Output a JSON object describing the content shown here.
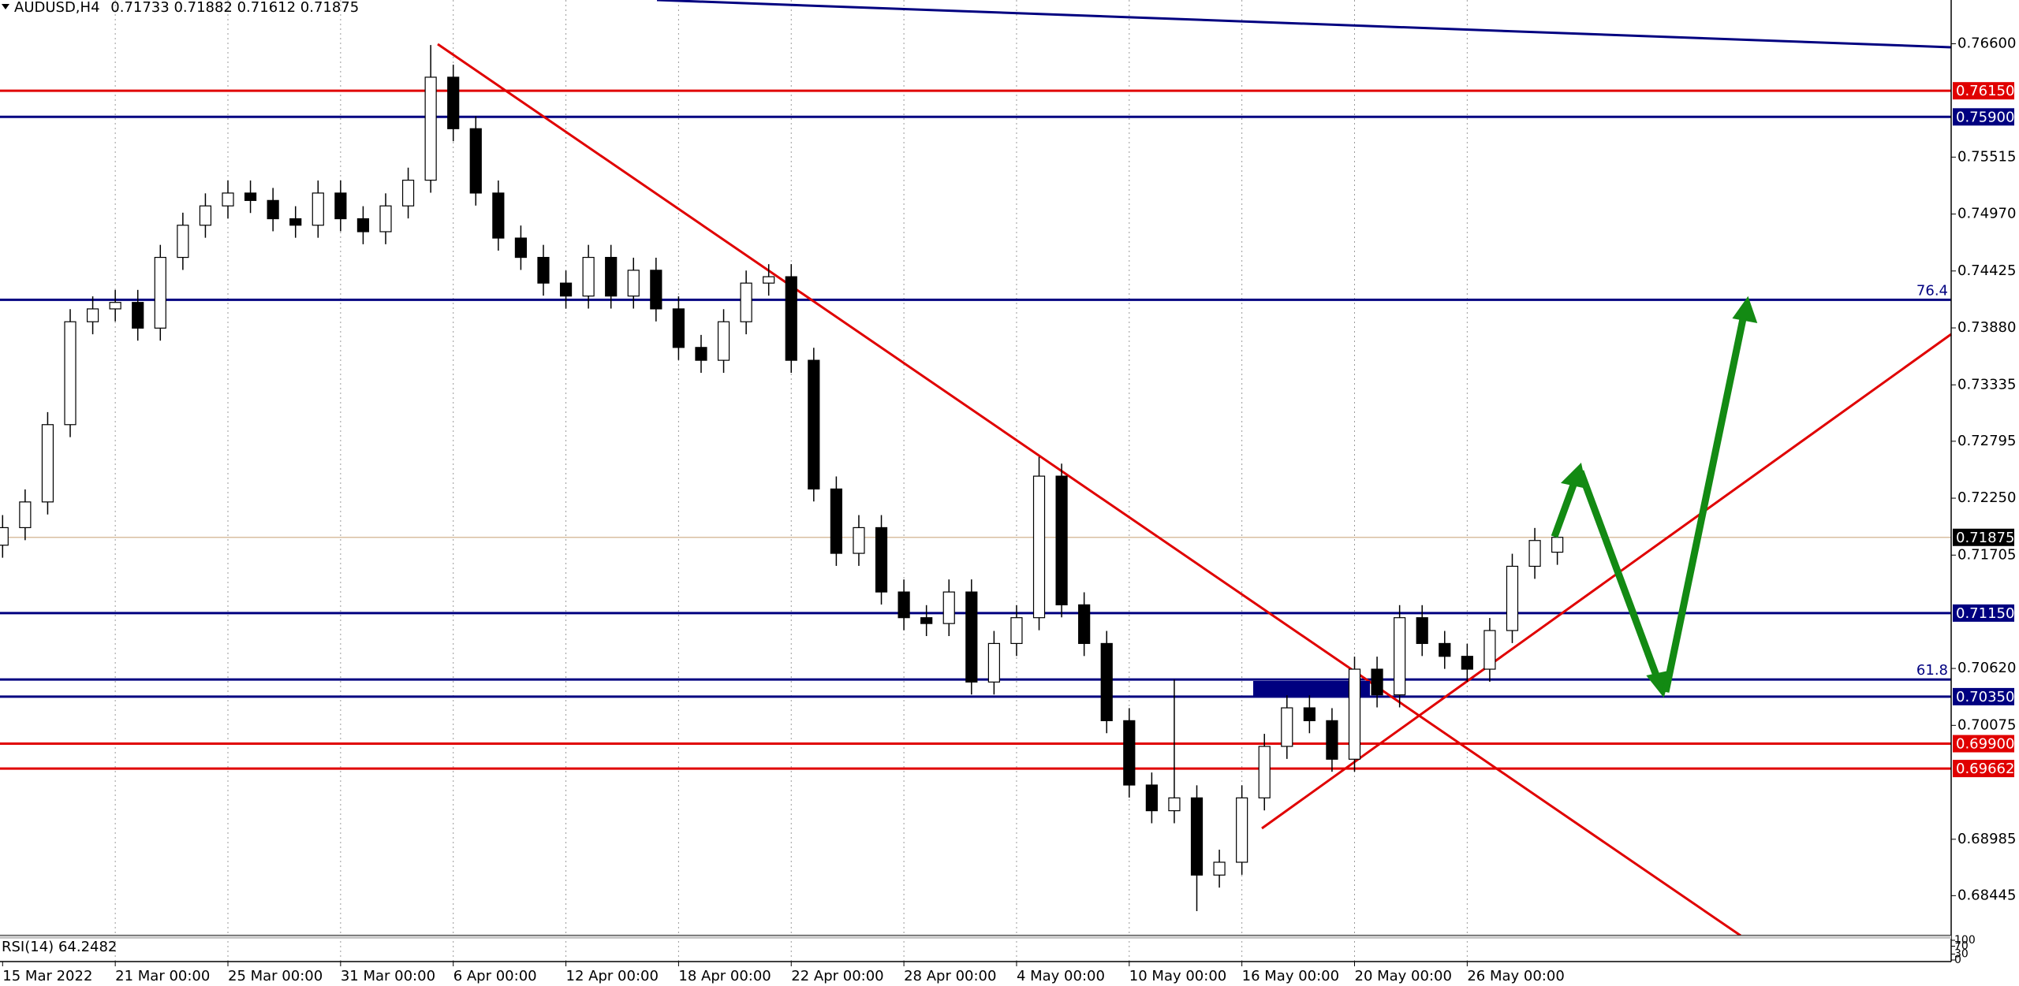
{
  "chart_data": {
    "type": "candlestick",
    "symbol": "AUDUSD,H4",
    "up_color": "#ffffff",
    "down_color": "#000000",
    "grid": true,
    "ylim": [
      0.68063,
      0.77019
    ],
    "yticks": [
      {
        "value": 0.766,
        "label": "0.76600"
      },
      0.75515,
      {
        "value": 0.7497,
        "label": "0.74970"
      },
      0.74425,
      {
        "value": 0.7388,
        "label": "0.73880"
      },
      0.73335,
      0.72795,
      {
        "value": 0.7225,
        "label": "0.72250"
      },
      0.71705,
      {
        "value": 0.7062,
        "label": "0.70620"
      },
      0.70075,
      0.68985,
      0.68445
    ],
    "categories": [
      "15 Mar 2022",
      null,
      null,
      null,
      null,
      "21 Mar 00:00",
      null,
      null,
      null,
      null,
      "25 Mar 00:00",
      null,
      null,
      null,
      null,
      "31 Mar 00:00",
      null,
      null,
      null,
      null,
      "6 Apr 00:00",
      null,
      null,
      null,
      null,
      "12 Apr 00:00",
      null,
      null,
      null,
      null,
      "18 Apr 00:00",
      null,
      null,
      null,
      null,
      "22 Apr 00:00",
      null,
      null,
      null,
      null,
      "28 Apr 00:00",
      null,
      null,
      null,
      null,
      "4 May 00:00",
      null,
      null,
      null,
      null,
      "10 May 00:00",
      null,
      null,
      null,
      null,
      "16 May 00:00",
      null,
      null,
      null,
      null,
      "20 May 00:00",
      null,
      null,
      null,
      null,
      "26 May 00:00",
      null,
      null,
      null,
      null
    ],
    "open": [
      0.718,
      0.71968,
      0.72214,
      0.72954,
      0.73939,
      0.74062,
      0.74124,
      0.73878,
      0.74555,
      0.74863,
      0.75048,
      0.75171,
      0.751,
      0.74925,
      0.74863,
      0.75171,
      0.74925,
      0.74801,
      0.75048,
      0.75294,
      0.7628,
      0.75787,
      0.75171,
      0.7474,
      0.74555,
      0.74309,
      0.74185,
      0.74555,
      0.74185,
      0.74432,
      0.74062,
      0.73693,
      0.7357,
      0.73939,
      0.74309,
      0.7437,
      0.7357,
      0.72338,
      0.71722,
      0.71968,
      0.71352,
      0.71106,
      0.7105,
      0.71352,
      0.7049,
      0.70859,
      0.71106,
      0.72461,
      0.71229,
      0.70859,
      0.7012,
      0.69504,
      0.69258,
      0.69381,
      0.68642,
      0.68765,
      0.69381,
      0.69874,
      0.70243,
      0.7012,
      0.69751,
      0.70613,
      0.70367,
      0.71106,
      0.70859,
      0.70736,
      0.70613,
      0.70983,
      0.71598,
      0.71733
    ],
    "high": [
      0.72088,
      0.72334,
      0.73074,
      0.74059,
      0.74182,
      0.74244,
      0.74244,
      0.74675,
      0.74983,
      0.75168,
      0.75291,
      0.75291,
      0.7522,
      0.75045,
      0.75291,
      0.75291,
      0.75045,
      0.75168,
      0.75414,
      0.76588,
      0.764,
      0.75907,
      0.75291,
      0.7486,
      0.74675,
      0.74429,
      0.74675,
      0.74675,
      0.74552,
      0.74552,
      0.74182,
      0.73813,
      0.74059,
      0.74429,
      0.7449,
      0.7449,
      0.7369,
      0.72458,
      0.72088,
      0.72088,
      0.71472,
      0.71226,
      0.71472,
      0.71472,
      0.70979,
      0.71226,
      0.72646,
      0.72581,
      0.71349,
      0.70979,
      0.7024,
      0.69624,
      0.70514,
      0.69501,
      0.68885,
      0.69501,
      0.69994,
      0.70363,
      0.70363,
      0.7024,
      0.70733,
      0.70733,
      0.71226,
      0.71226,
      0.70979,
      0.70856,
      0.71103,
      0.71718,
      0.71965,
      0.71882
    ],
    "low": [
      0.7168,
      0.71848,
      0.72094,
      0.72834,
      0.73819,
      0.73942,
      0.73758,
      0.73758,
      0.74435,
      0.74743,
      0.74928,
      0.7498,
      0.74805,
      0.74743,
      0.74743,
      0.74805,
      0.74681,
      0.74681,
      0.74928,
      0.75174,
      0.75667,
      0.75051,
      0.7462,
      0.74435,
      0.74189,
      0.74065,
      0.74065,
      0.74065,
      0.74065,
      0.73942,
      0.73573,
      0.7345,
      0.7345,
      0.73819,
      0.74189,
      0.7345,
      0.72218,
      0.71602,
      0.71602,
      0.71232,
      0.70986,
      0.7093,
      0.7093,
      0.7037,
      0.7037,
      0.70739,
      0.70986,
      0.71109,
      0.70739,
      0.7,
      0.69384,
      0.69138,
      0.69138,
      0.68297,
      0.68522,
      0.68645,
      0.69261,
      0.69754,
      0.7,
      0.69631,
      0.69631,
      0.70247,
      0.70247,
      0.70739,
      0.70616,
      0.70493,
      0.70493,
      0.70863,
      0.71478,
      0.71612
    ],
    "close": [
      0.71968,
      0.72214,
      0.72954,
      0.73939,
      0.74062,
      0.74124,
      0.73878,
      0.74555,
      0.74863,
      0.75048,
      0.75171,
      0.751,
      0.74925,
      0.74863,
      0.75171,
      0.74925,
      0.74801,
      0.75048,
      0.75294,
      0.7628,
      0.75787,
      0.75171,
      0.7474,
      0.74555,
      0.74309,
      0.74185,
      0.74555,
      0.74185,
      0.74432,
      0.74062,
      0.73693,
      0.7357,
      0.73939,
      0.74309,
      0.7437,
      0.7357,
      0.72338,
      0.71722,
      0.71968,
      0.71352,
      0.71106,
      0.7105,
      0.71352,
      0.7049,
      0.70859,
      0.71106,
      0.72461,
      0.71229,
      0.70859,
      0.7012,
      0.69504,
      0.69258,
      0.69381,
      0.68642,
      0.68765,
      0.69381,
      0.69874,
      0.70243,
      0.7012,
      0.69751,
      0.70613,
      0.70367,
      0.71106,
      0.70859,
      0.70736,
      0.70613,
      0.70983,
      0.71598,
      0.71845,
      0.71875
    ],
    "levels": [
      {
        "value": 0.7615,
        "label": "0.76150",
        "color": "#e00000"
      },
      {
        "value": 0.759,
        "label": "0.75900",
        "color": "#000080"
      },
      {
        "value": 0.7115,
        "label": "0.71150",
        "color": "#000080"
      },
      {
        "value": 0.7035,
        "label": "0.70350",
        "color": "#000080"
      },
      {
        "value": 0.699,
        "label": "0.69900",
        "color": "#e00000"
      },
      {
        "value": 0.69662,
        "label": "0.69662",
        "color": "#e00000"
      }
    ],
    "current_price": {
      "value": 0.71875,
      "color": "#000000",
      "line_color": "#d8bfa0"
    },
    "fib_levels": [
      {
        "value": 0.74149,
        "label": "76.4",
        "color": "#000080"
      },
      {
        "value": 0.70514,
        "label": "61.8",
        "color": "#000080"
      }
    ],
    "rsi": {
      "name": "RSI(14)",
      "value": 64.2482,
      "ylim": [
        0,
        100
      ],
      "yticks": [
        100,
        70,
        30,
        0
      ]
    }
  }
}
